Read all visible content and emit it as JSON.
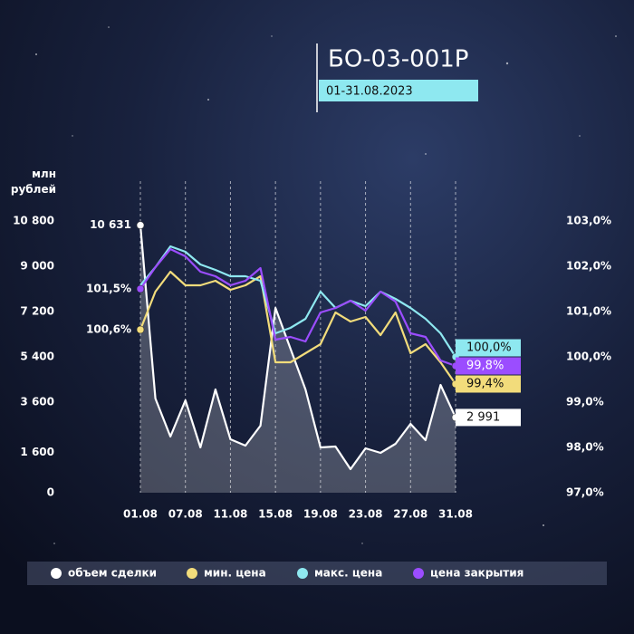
{
  "chart_data": {
    "type": "line",
    "title": "БО-03-001Р",
    "subtitle": "01-31.08.2023",
    "ylabel": "млн рублей",
    "categories": [
      "01.08",
      null,
      null,
      "07.08",
      null,
      null,
      "11.08",
      null,
      null,
      "15.08",
      null,
      null,
      "19.08",
      null,
      null,
      "23.08",
      null,
      null,
      "27.08",
      null,
      null,
      "31.08"
    ],
    "ylim": [
      0,
      10800
    ],
    "yticks": [
      0,
      {
        "value": 1600,
        "label": "1 600"
      },
      {
        "value": 3600,
        "label": "3 600"
      },
      {
        "value": 5400,
        "label": "5 400"
      },
      {
        "value": 7200,
        "label": "7 200"
      },
      {
        "value": 9000,
        "label": "9 000"
      },
      {
        "value": 10800,
        "label": "10 800"
      }
    ],
    "y2lim": [
      97,
      103
    ],
    "y2ticks": [
      {
        "value": 97,
        "label": "97,0%"
      },
      {
        "value": 98,
        "label": "98,0%"
      },
      {
        "value": 99,
        "label": "99,0%"
      },
      {
        "value": 100,
        "label": "100,0%"
      },
      {
        "value": 101,
        "label": "101,0%"
      },
      {
        "value": 102,
        "label": "102,0%"
      },
      {
        "value": 103,
        "label": "103,0%"
      }
    ],
    "grid": true,
    "legend": "bottom",
    "series": [
      {
        "name": "объем сделки",
        "color": "#ffffff",
        "area": true,
        "values": [
          10631,
          3744,
          2232,
          3672,
          1800,
          4104,
          2124,
          1872,
          2664,
          7344,
          5724,
          4104,
          1800,
          1836,
          936,
          1764,
          1584,
          1944,
          2736,
          2088,
          4284,
          2991
        ],
        "value_labels": [
          "10 631",
          null,
          null,
          null,
          null,
          null,
          null,
          null,
          null,
          null,
          null,
          null,
          null,
          null,
          null,
          null,
          null,
          null,
          null,
          null,
          null,
          "2 991"
        ]
      },
      {
        "name": "мин. цена",
        "color": "#f2dc7b",
        "axis": "y2",
        "values": [
          100.6,
          101.44,
          101.88,
          101.58,
          101.58,
          101.68,
          101.48,
          101.58,
          101.78,
          99.88,
          99.88,
          100.08,
          100.28,
          100.98,
          100.78,
          100.88,
          100.48,
          100.98,
          100.08,
          100.28,
          99.88,
          99.4
        ],
        "value_labels": [
          "100,6%",
          null,
          null,
          null,
          null,
          null,
          null,
          null,
          null,
          null,
          null,
          null,
          null,
          null,
          null,
          null,
          null,
          null,
          null,
          null,
          null,
          "99,4%"
        ]
      },
      {
        "name": "макс. цена",
        "color": "#8ee8f0",
        "axis": "y2",
        "values": [
          101.58,
          101.98,
          102.44,
          102.32,
          102.04,
          101.92,
          101.78,
          101.78,
          101.68,
          100.52,
          100.64,
          100.84,
          101.44,
          101.08,
          101.24,
          101.12,
          101.44,
          101.28,
          101.08,
          100.84,
          100.52,
          100.0
        ],
        "value_labels": [
          null,
          null,
          null,
          null,
          null,
          null,
          null,
          null,
          null,
          null,
          null,
          null,
          null,
          null,
          null,
          null,
          null,
          null,
          null,
          null,
          null,
          "100,0%"
        ]
      },
      {
        "name": "цена закрытия",
        "color": "#9b4dff",
        "axis": "y2",
        "values": [
          101.5,
          101.98,
          102.38,
          102.22,
          101.88,
          101.78,
          101.58,
          101.68,
          101.96,
          100.38,
          100.44,
          100.34,
          100.98,
          101.08,
          101.24,
          101.02,
          101.44,
          101.22,
          100.52,
          100.44,
          99.92,
          99.8
        ],
        "value_labels": [
          "101,5%",
          null,
          null,
          null,
          null,
          null,
          null,
          null,
          null,
          null,
          null,
          null,
          null,
          null,
          null,
          null,
          null,
          null,
          null,
          null,
          null,
          "99,8%"
        ]
      }
    ]
  }
}
